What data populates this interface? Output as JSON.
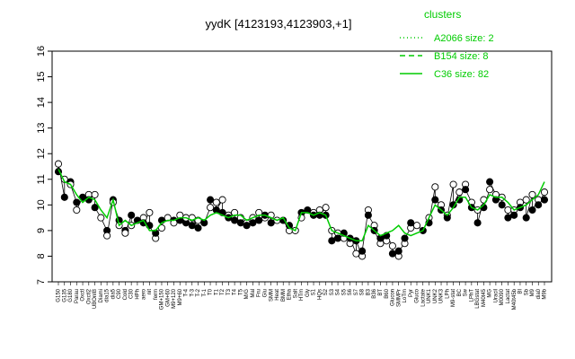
{
  "chart_data": {
    "type": "line",
    "title": "yydK [4123193,4123903,+1]",
    "ylim": [
      7,
      16
    ],
    "yticks": [
      7,
      8,
      9,
      10,
      11,
      12,
      13,
      14,
      15,
      16
    ],
    "xticks": [
      "G150",
      "G135",
      "G180",
      "Parau",
      "Oxctl",
      "Oxctl2",
      "UBOnIB",
      "Diami",
      "dia15",
      "dia5",
      "C90",
      "Cold",
      "C30",
      "HPh",
      "aero",
      "nit",
      "ferm",
      "GM+150",
      "GM+60",
      "M9+120",
      "M9+60",
      "T-4",
      "T-3",
      "T-2",
      "T-1",
      "T0",
      "T1",
      "T2",
      "T3",
      "T4",
      "T5",
      "M/G",
      "Mal",
      "Fru",
      "Glu",
      "SMM",
      "Heat",
      "BMM",
      "Etha",
      "Salt",
      "HTm",
      "Gly",
      "S1",
      "HQs",
      "S2",
      "S3",
      "S4",
      "S5",
      "S6",
      "S7",
      "S8",
      "B3",
      "B36",
      "BT",
      "B60",
      "Glucon",
      "SMMPr",
      "LoTm",
      "Pyr",
      "Gluco",
      "Lactate",
      "UNK1",
      "UNK2",
      "UNK3",
      "LPh",
      "M9-stat",
      "BC",
      "Sw",
      "LPhT",
      "LBGstat",
      "M40t45",
      "MG",
      "Uracil",
      "M0090",
      "Lactat",
      "M40t45b",
      "BI",
      "Sb",
      "M9",
      "dia0",
      "M9b"
    ],
    "legend": {
      "title": "clusters",
      "position": "top-right",
      "entries": [
        {
          "label": "A2066 size: 2",
          "style": "dotted"
        },
        {
          "label": "B154 size: 8",
          "style": "dashed"
        },
        {
          "label": "C36 size: 82",
          "style": "solid"
        }
      ]
    },
    "line_values": [
      11.4,
      10.9,
      10.8,
      10.4,
      10.1,
      10.3,
      10.2,
      9.8,
      9.5,
      10.2,
      9.2,
      9.4,
      9.2,
      9.3,
      9.4,
      9.0,
      9.0,
      9.3,
      9.4,
      9.4,
      9.5,
      9.5,
      9.4,
      9.5,
      9.4,
      9.6,
      9.7,
      9.6,
      9.5,
      9.6,
      9.6,
      9.4,
      9.5,
      9.6,
      9.6,
      9.5,
      9.4,
      9.5,
      9.1,
      9.0,
      9.7,
      9.7,
      9.6,
      9.7,
      9.6,
      9.0,
      8.9,
      8.8,
      8.7,
      8.6,
      8.6,
      9.2,
      9.0,
      8.8,
      8.9,
      9.0,
      9.2,
      8.9,
      8.8,
      8.9,
      9.0,
      9.5,
      10.0,
      9.8,
      9.6,
      9.9,
      10.3,
      10.3,
      9.9,
      9.8,
      10.0,
      10.4,
      10.3,
      10.3,
      10.1,
      9.8,
      9.9,
      10.0,
      10.2,
      10.4,
      10.9
    ],
    "series": [
      {
        "points": [
          [
            0,
            11.3
          ],
          [
            0,
            11.6
          ],
          [
            1,
            10.3
          ],
          [
            1,
            11.0
          ],
          [
            2,
            10.9
          ],
          [
            2,
            10.8
          ],
          [
            3,
            10.1
          ],
          [
            3,
            9.8
          ],
          [
            4,
            10.3
          ],
          [
            5,
            10.4
          ],
          [
            5,
            10.2
          ],
          [
            6,
            10.4
          ],
          [
            6,
            9.9
          ],
          [
            7,
            9.5
          ],
          [
            8,
            9.0
          ],
          [
            8,
            8.8
          ],
          [
            9,
            10.2
          ],
          [
            9,
            10.1
          ],
          [
            10,
            9.4
          ],
          [
            10,
            9.2
          ],
          [
            11,
            9.0
          ],
          [
            11,
            8.9
          ],
          [
            12,
            9.6
          ],
          [
            12,
            9.2
          ],
          [
            13,
            9.4
          ],
          [
            14,
            9.5
          ],
          [
            14,
            9.3
          ],
          [
            15,
            9.7
          ],
          [
            15,
            9.2
          ],
          [
            16,
            8.7
          ],
          [
            16,
            8.9
          ],
          [
            17,
            9.1
          ],
          [
            17,
            9.4
          ],
          [
            18,
            9.5
          ],
          [
            19,
            9.4
          ],
          [
            19,
            9.3
          ],
          [
            20,
            9.4
          ],
          [
            20,
            9.6
          ],
          [
            21,
            9.3
          ],
          [
            21,
            9.5
          ],
          [
            22,
            9.2
          ],
          [
            22,
            9.5
          ],
          [
            23,
            9.1
          ],
          [
            23,
            9.4
          ],
          [
            24,
            9.3
          ],
          [
            25,
            9.9
          ],
          [
            25,
            10.2
          ],
          [
            26,
            10.1
          ],
          [
            26,
            9.8
          ],
          [
            27,
            10.2
          ],
          [
            27,
            9.7
          ],
          [
            28,
            9.6
          ],
          [
            28,
            9.5
          ],
          [
            29,
            9.7
          ],
          [
            29,
            9.4
          ],
          [
            30,
            9.5
          ],
          [
            30,
            9.3
          ],
          [
            31,
            9.3
          ],
          [
            31,
            9.2
          ],
          [
            32,
            9.5
          ],
          [
            32,
            9.3
          ],
          [
            33,
            9.7
          ],
          [
            33,
            9.4
          ],
          [
            34,
            9.5
          ],
          [
            34,
            9.6
          ],
          [
            35,
            9.6
          ],
          [
            35,
            9.3
          ],
          [
            36,
            9.4
          ],
          [
            37,
            9.4
          ],
          [
            38,
            9.0
          ],
          [
            38,
            9.2
          ],
          [
            39,
            9.0
          ],
          [
            40,
            9.7
          ],
          [
            40,
            9.5
          ],
          [
            41,
            9.8
          ],
          [
            42,
            9.7
          ],
          [
            42,
            9.6
          ],
          [
            43,
            9.8
          ],
          [
            43,
            9.6
          ],
          [
            44,
            9.9
          ],
          [
            44,
            9.6
          ],
          [
            45,
            9.0
          ],
          [
            45,
            8.6
          ],
          [
            46,
            8.9
          ],
          [
            46,
            8.7
          ],
          [
            47,
            8.7
          ],
          [
            47,
            8.9
          ],
          [
            48,
            8.5
          ],
          [
            48,
            8.7
          ],
          [
            49,
            8.1
          ],
          [
            49,
            8.6
          ],
          [
            50,
            8.0
          ],
          [
            50,
            8.2
          ],
          [
            51,
            9.8
          ],
          [
            51,
            9.6
          ],
          [
            52,
            9.2
          ],
          [
            52,
            9.0
          ],
          [
            53,
            8.5
          ],
          [
            53,
            8.7
          ],
          [
            54,
            8.6
          ],
          [
            54,
            8.8
          ],
          [
            55,
            8.4
          ],
          [
            55,
            8.1
          ],
          [
            56,
            8.0
          ],
          [
            56,
            8.2
          ],
          [
            57,
            8.5
          ],
          [
            57,
            8.7
          ],
          [
            58,
            9.1
          ],
          [
            58,
            9.3
          ],
          [
            59,
            9.2
          ],
          [
            60,
            9.0
          ],
          [
            61,
            9.5
          ],
          [
            61,
            9.3
          ],
          [
            62,
            10.7
          ],
          [
            62,
            10.2
          ],
          [
            63,
            10.0
          ],
          [
            63,
            9.8
          ],
          [
            64,
            9.6
          ],
          [
            64,
            9.5
          ],
          [
            65,
            10.8
          ],
          [
            65,
            10.0
          ],
          [
            66,
            10.5
          ],
          [
            66,
            10.2
          ],
          [
            67,
            10.8
          ],
          [
            67,
            10.6
          ],
          [
            68,
            10.1
          ],
          [
            68,
            9.9
          ],
          [
            69,
            9.8
          ],
          [
            69,
            9.3
          ],
          [
            70,
            10.2
          ],
          [
            70,
            9.9
          ],
          [
            71,
            10.6
          ],
          [
            71,
            10.9
          ],
          [
            72,
            10.4
          ],
          [
            72,
            10.2
          ],
          [
            73,
            10.3
          ],
          [
            73,
            10.0
          ],
          [
            74,
            9.8
          ],
          [
            74,
            9.5
          ],
          [
            75,
            9.8
          ],
          [
            75,
            9.6
          ],
          [
            76,
            10.1
          ],
          [
            76,
            9.9
          ],
          [
            77,
            10.2
          ],
          [
            77,
            9.5
          ],
          [
            78,
            10.4
          ],
          [
            78,
            9.8
          ],
          [
            79,
            10.2
          ],
          [
            79,
            10.0
          ],
          [
            80,
            10.5
          ],
          [
            80,
            10.2
          ]
        ]
      }
    ]
  }
}
